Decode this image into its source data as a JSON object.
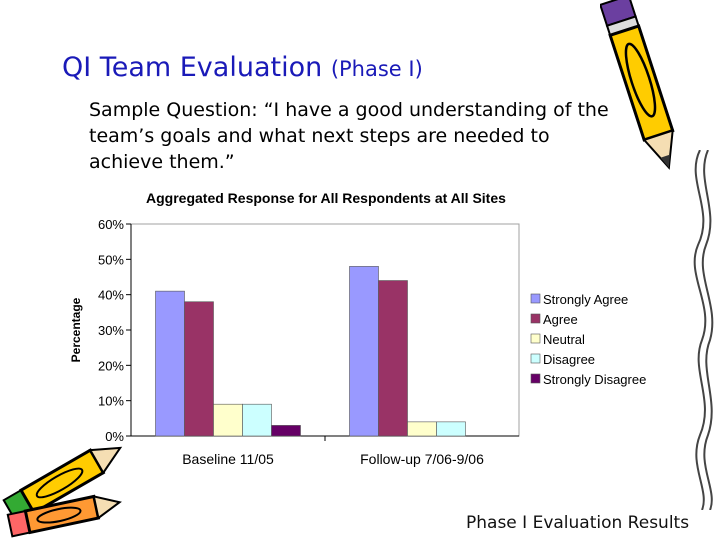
{
  "slide": {
    "title_main": "QI Team Evaluation",
    "title_small": "(Phase I)",
    "question": "Sample Question: “I have a good understanding of the team’s goals and what next steps are needed to achieve them.”",
    "footer": "Phase I Evaluation Results"
  },
  "decorations": {
    "top_right": "pencil-icon",
    "bottom_left": "pencil-icon",
    "right_edge": "wavy-border"
  },
  "chart_data": {
    "type": "bar",
    "title": "Aggregated Response for All Respondents at All Sites",
    "xlabel": "",
    "ylabel": "Percentage",
    "categories": [
      "Baseline 11/05",
      "Follow-up 7/06-9/06"
    ],
    "ylim": [
      0,
      60
    ],
    "yticks": [
      "0%",
      "10%",
      "20%",
      "30%",
      "40%",
      "50%",
      "60%"
    ],
    "grid": false,
    "legend_position": "right",
    "series": [
      {
        "name": "Strongly Agree",
        "values": [
          41,
          48
        ],
        "color": "#9999ff"
      },
      {
        "name": "Agree",
        "values": [
          38,
          44
        ],
        "color": "#993366"
      },
      {
        "name": "Neutral",
        "values": [
          9,
          4
        ],
        "color": "#ffffcc"
      },
      {
        "name": "Disagree",
        "values": [
          9,
          4
        ],
        "color": "#ccffff"
      },
      {
        "name": "Strongly Disagree",
        "values": [
          3,
          0
        ],
        "color": "#660066"
      }
    ]
  }
}
